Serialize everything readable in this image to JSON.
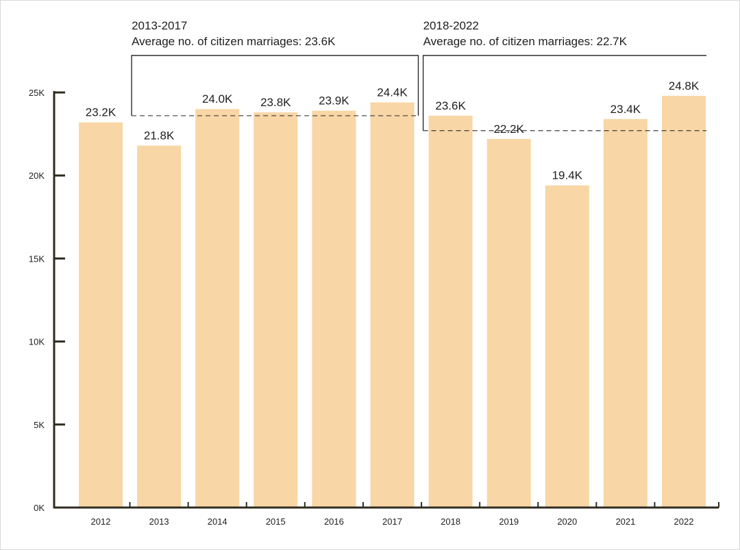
{
  "chart_data": {
    "type": "bar",
    "title": "",
    "xlabel": "",
    "ylabel": "",
    "ylim": [
      0,
      25000
    ],
    "y_ticks": [
      0,
      5000,
      10000,
      15000,
      20000,
      25000
    ],
    "y_tick_labels": [
      "0K",
      "5K",
      "10K",
      "15K",
      "20K",
      "25K"
    ],
    "categories": [
      "2012",
      "2013",
      "2014",
      "2015",
      "2016",
      "2017",
      "2018",
      "2019",
      "2020",
      "2021",
      "2022"
    ],
    "values": [
      23200,
      21800,
      24000,
      23800,
      23900,
      24400,
      23600,
      22200,
      19400,
      23400,
      24800
    ],
    "data_labels": [
      "23.2K",
      "21.8K",
      "24.0K",
      "23.8K",
      "23.9K",
      "24.4K",
      "23.6K",
      "22.2K",
      "19.4K",
      "23.4K",
      "24.8K"
    ],
    "bar_color": "#f8d6a5",
    "axis_color": "#2f2b1f",
    "grid": false,
    "legend": "none",
    "annotations": [
      {
        "period_label": "2013-2017",
        "average_label": "Average no. of citizen marriages: 23.6K",
        "start_category": "2013",
        "end_category": "2017",
        "average_value": 23600
      },
      {
        "period_label": "2018-2022",
        "average_label": "Average no. of citizen marriages: 22.7K",
        "start_category": "2018",
        "end_category": "2022",
        "average_value": 22700
      }
    ]
  }
}
